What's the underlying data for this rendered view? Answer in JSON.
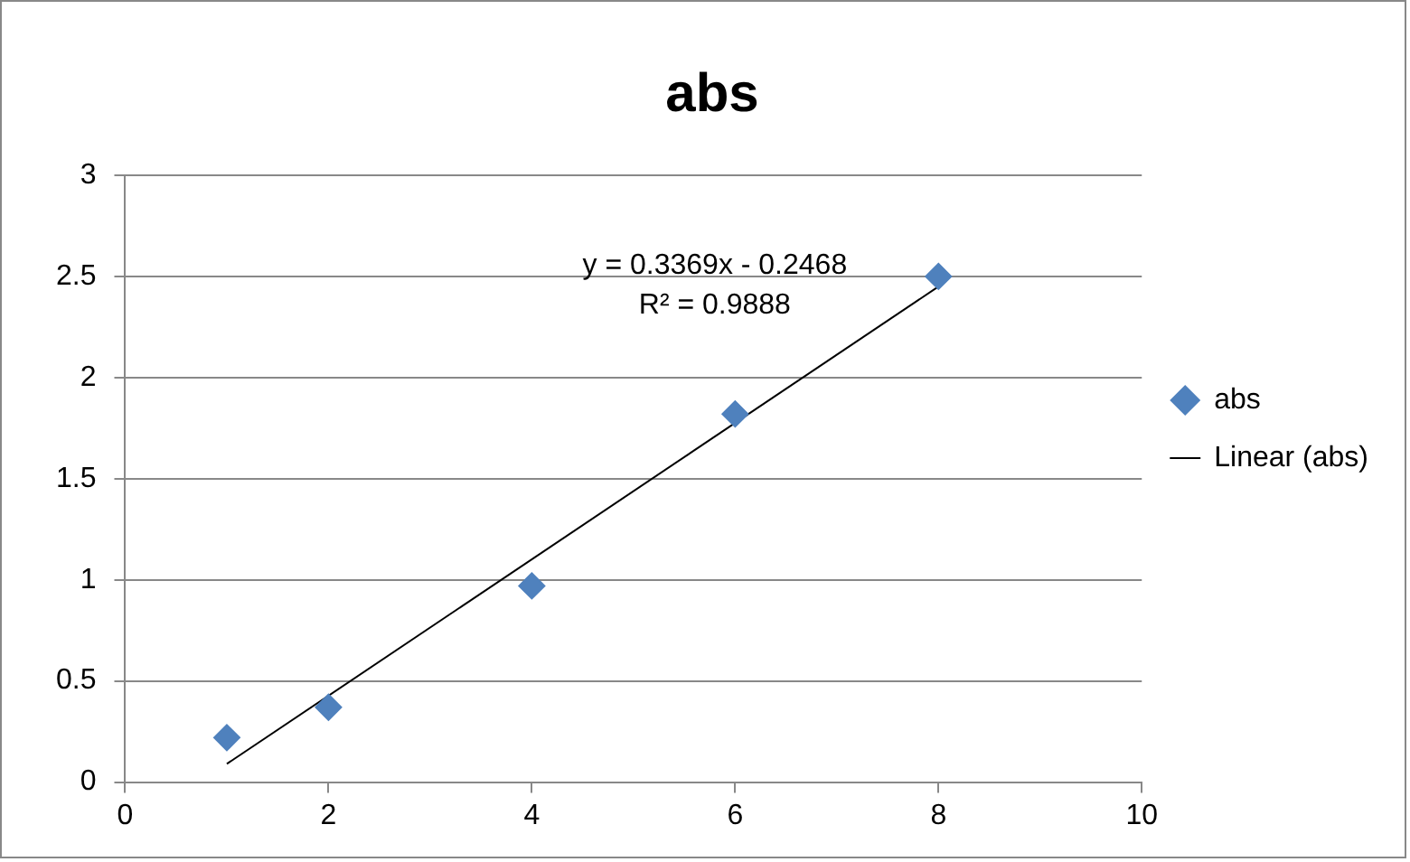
{
  "chart_data": {
    "type": "scatter",
    "title": "abs",
    "series": [
      {
        "name": "abs",
        "color": "#4f81bd",
        "marker": "diamond",
        "x": [
          1,
          2,
          4,
          6,
          8
        ],
        "values": [
          0.22,
          0.37,
          0.97,
          1.82,
          2.5
        ]
      },
      {
        "name": "Linear (abs)",
        "type": "line",
        "color": "#000000",
        "marker": "none",
        "line_style": "solid",
        "x": [
          1,
          8
        ],
        "values": [
          0.09,
          2.45
        ]
      }
    ],
    "xlim": [
      0,
      10
    ],
    "xticks": [
      0,
      2,
      4,
      6,
      8,
      10
    ],
    "ylim": [
      0,
      3
    ],
    "yticks": [
      0,
      0.5,
      1,
      1.5,
      2,
      2.5,
      3
    ],
    "grid": "y",
    "legend": "right",
    "annotations": [
      "y = 0.3369x - 0.2468",
      "R² = 0.9888"
    ]
  }
}
